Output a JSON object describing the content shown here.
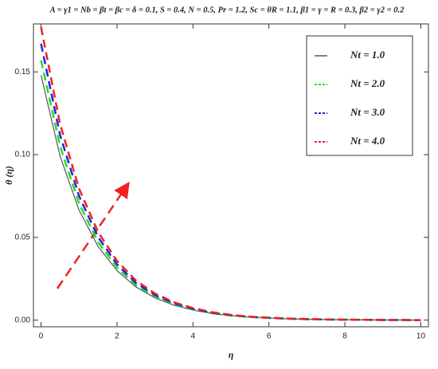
{
  "chart_data": {
    "type": "line",
    "title": "A = γ1 = Nb = βt = βc = δ = 0.1, S = 0.4, N = 0.5, Pr = 1.2, Sc = θR = 1.1, β1 = γ = R = 0.3, β2 = γ2 = 0.2",
    "x_label": "η",
    "y_label": "θ (η)",
    "x": [
      0,
      0.5,
      1,
      1.5,
      2,
      2.5,
      3,
      3.5,
      4,
      4.5,
      5,
      5.5,
      6,
      6.5,
      7,
      7.5,
      8,
      8.5,
      9,
      9.5,
      10
    ],
    "series": [
      {
        "name": "Nt = 1.0",
        "color": "#555555",
        "dash": "solid",
        "values": [
          0.148,
          0.0992,
          0.0665,
          0.0446,
          0.0299,
          0.02,
          0.0135,
          0.009,
          0.0061,
          0.004,
          0.0027,
          0.0018,
          0.0012,
          0.0008,
          0.0005,
          0.0004,
          0.0003,
          0.0002,
          0.0001,
          0.0001,
          0
        ]
      },
      {
        "name": "Nt = 2.0",
        "color": "#22dd22",
        "dash": "dashed",
        "values": [
          0.157,
          0.1052,
          0.0705,
          0.0473,
          0.0317,
          0.0212,
          0.0143,
          0.0096,
          0.0064,
          0.0042,
          0.0028,
          0.0019,
          0.0013,
          0.0009,
          0.0006,
          0.0004,
          0.0003,
          0.0002,
          0.0001,
          0.0001,
          0
        ]
      },
      {
        "name": "Nt = 3.0",
        "color": "#2222dd",
        "dash": "dashed",
        "values": [
          0.167,
          0.1119,
          0.075,
          0.0503,
          0.0337,
          0.0225,
          0.0152,
          0.0102,
          0.0068,
          0.0045,
          0.003,
          0.002,
          0.0014,
          0.0009,
          0.0006,
          0.0004,
          0.0003,
          0.0002,
          0.0001,
          0.0001,
          0
        ]
      },
      {
        "name": "Nt = 4.0",
        "color": "#ee2222",
        "dash": "dashed",
        "values": [
          0.177,
          0.1186,
          0.0795,
          0.0533,
          0.0358,
          0.0239,
          0.0161,
          0.0108,
          0.0073,
          0.0048,
          0.0032,
          0.0021,
          0.0015,
          0.001,
          0.0007,
          0.0004,
          0.0003,
          0.0002,
          0.0001,
          0.0001,
          0
        ]
      }
    ],
    "xlim": [
      -0.2,
      10.2
    ],
    "ylim": [
      -0.004,
      0.179
    ],
    "xticks": [
      0,
      2,
      4,
      6,
      8,
      10
    ],
    "yticks": [
      {
        "value": 0,
        "label": "0.00"
      },
      {
        "value": 0.05,
        "label": "0.05"
      },
      {
        "value": 0.1,
        "label": "0.10"
      },
      {
        "value": 0.15,
        "label": "0.15"
      }
    ],
    "legend": "upper right"
  }
}
